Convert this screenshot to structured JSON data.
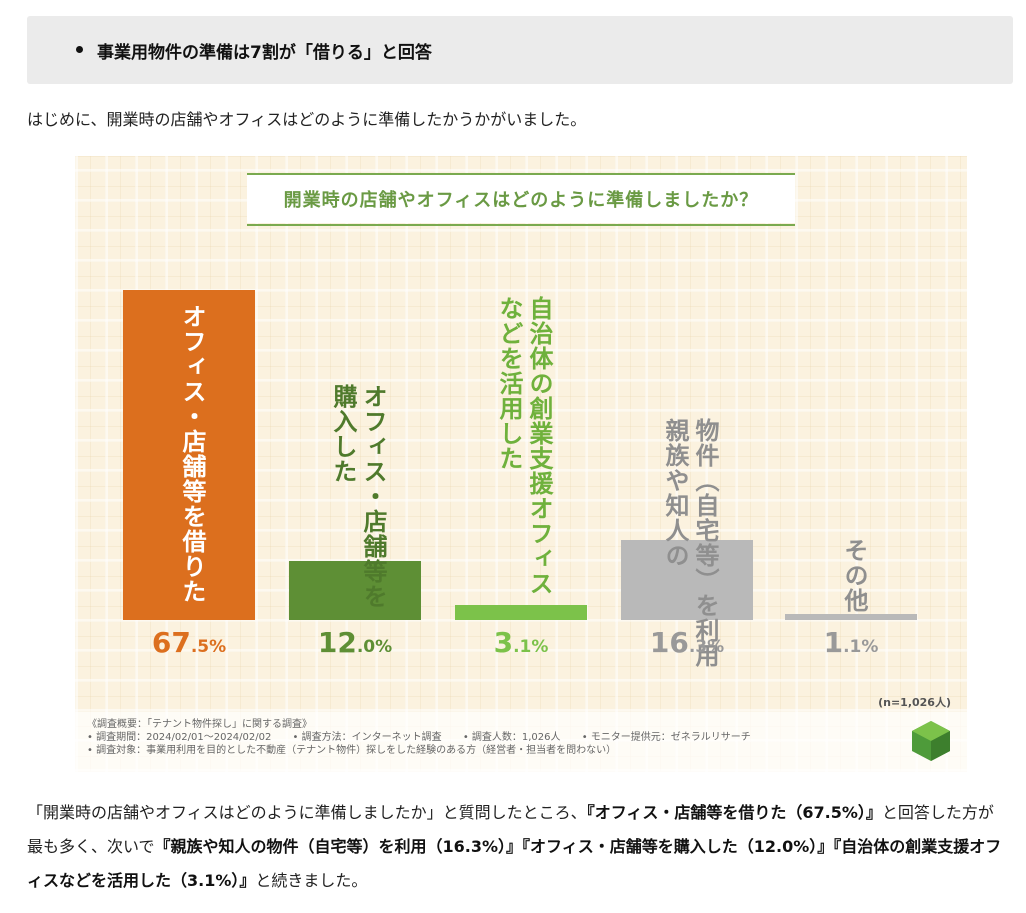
{
  "headline": "事業用物件の準備は7割が「借りる」と回答",
  "intro": "はじめに、開業時の店舗やオフィスはどのように準備したかうかがいました。",
  "chart_data": {
    "type": "bar",
    "title": "開業時の店舗やオフィスはどのように準備しましたか？",
    "categories": [
      "オフィス・店舗等を借りた",
      "オフィス・店舗等を購入した",
      "自治体の創業支援オフィスなどを活用した",
      "親族や知人の物件（自宅等）を利用",
      "その他"
    ],
    "label_columns": [
      [
        "オフィス・店舗等を借りた"
      ],
      [
        "購入した",
        "オフィス・店舗等を"
      ],
      [
        "などを活用した",
        "自治体の創業支援オフィス"
      ],
      [
        "親族や知人の",
        "物件（自宅等）を利用"
      ],
      [
        "その他"
      ]
    ],
    "values": [
      67.5,
      12.0,
      3.1,
      16.3,
      1.1
    ],
    "value_labels": [
      {
        "int": "67",
        "dec": ".5%"
      },
      {
        "int": "12",
        "dec": ".0%"
      },
      {
        "int": "3",
        "dec": ".1%"
      },
      {
        "int": "16",
        "dec": ".3%"
      },
      {
        "int": "1",
        "dec": ".1%"
      }
    ],
    "colors": [
      "#dc6f1e",
      "#5e8f35",
      "#7cc24a",
      "#b9b9b9",
      "#b9b9b9"
    ],
    "label_colors": [
      "#ffffff",
      "#4f7a2c",
      "#6fb13c",
      "#8f8f8f",
      "#8f8f8f"
    ],
    "pct_colors": [
      "#dc6f1e",
      "#5e8f35",
      "#7cc24a",
      "#999999",
      "#999999"
    ],
    "n_note": "(n=1,026人)"
  },
  "survey": {
    "line1": "《調査概要：「テナント物件探し」に関する調査》",
    "line2_items": [
      "• 調査期間：2024/02/01～2024/02/02",
      "• 調査方法：インターネット調査",
      "• 調査人数：1,026人",
      "• モニター提供元：ゼネラルリサーチ"
    ],
    "line3": "• 調査対象：事業用利用を目的とした不動産（テナント物件）探しをした経験のある方（経営者・担当者を問わない）"
  },
  "conclusion": {
    "p1": "「開業時の店舗やオフィスはどのように準備しましたか」と質問したところ、",
    "b1": "『オフィス・店舗等を借りた（67.5%）』",
    "p2": "と回答した方が最も多く、次いで",
    "b2": "『親族や知人の物件（自宅等）を利用（16.3%）』『オフィス・店舗等を購入した（12.0%）』『自治体の創業支援オフィスなどを活用した（3.1%）』",
    "p3": "と続きました。"
  }
}
